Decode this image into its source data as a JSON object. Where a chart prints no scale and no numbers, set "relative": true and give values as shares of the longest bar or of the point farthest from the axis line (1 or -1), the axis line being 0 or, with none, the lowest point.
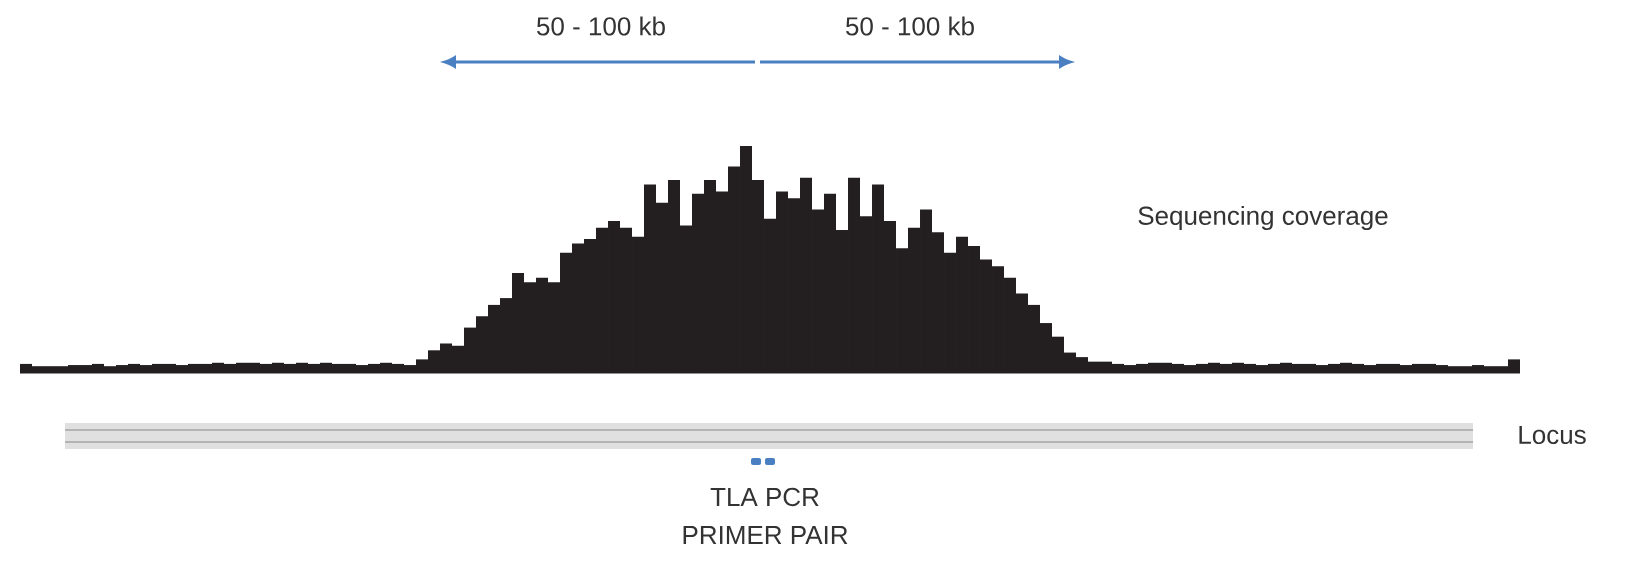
{
  "chart_data": {
    "type": "bar",
    "relative": true,
    "color": "#231f20",
    "categories": [
      null,
      null,
      null,
      null,
      null,
      null,
      null,
      null,
      null,
      null,
      null,
      null,
      null,
      null,
      null,
      null,
      null,
      null,
      null,
      null,
      null,
      null,
      null,
      null,
      null,
      null,
      null,
      null,
      null,
      null,
      null,
      null,
      null,
      null,
      null,
      null,
      null,
      null,
      null,
      null,
      null,
      null,
      null,
      null,
      null,
      null,
      null,
      null,
      null,
      null,
      null,
      null,
      null,
      null,
      null,
      null,
      null,
      null,
      null,
      null,
      null,
      null,
      null,
      null,
      null,
      null,
      null,
      null,
      null,
      null,
      null,
      null,
      null,
      null,
      null,
      null,
      null,
      null,
      null,
      null,
      null,
      null,
      null,
      null,
      null,
      null,
      null,
      null,
      null,
      null,
      null,
      null,
      null,
      null,
      null,
      null,
      null,
      null,
      null,
      null,
      null,
      null,
      null,
      null,
      null,
      null,
      null,
      null,
      null,
      null,
      null,
      null,
      null,
      null,
      null,
      null,
      null,
      null,
      null,
      null,
      null,
      null,
      null,
      null,
      null
    ],
    "values": [
      0.04,
      0.03,
      0.03,
      0.03,
      0.035,
      0.035,
      0.04,
      0.03,
      0.035,
      0.04,
      0.035,
      0.04,
      0.04,
      0.035,
      0.04,
      0.04,
      0.045,
      0.04,
      0.045,
      0.045,
      0.04,
      0.045,
      0.04,
      0.045,
      0.04,
      0.045,
      0.04,
      0.04,
      0.035,
      0.04,
      0.045,
      0.04,
      0.035,
      0.06,
      0.1,
      0.13,
      0.12,
      0.2,
      0.25,
      0.3,
      0.33,
      0.44,
      0.4,
      0.42,
      0.4,
      0.53,
      0.57,
      0.59,
      0.64,
      0.67,
      0.64,
      0.6,
      0.83,
      0.75,
      0.85,
      0.65,
      0.79,
      0.85,
      0.8,
      0.91,
      1.0,
      0.85,
      0.68,
      0.8,
      0.77,
      0.86,
      0.72,
      0.79,
      0.63,
      0.86,
      0.69,
      0.83,
      0.67,
      0.55,
      0.64,
      0.72,
      0.62,
      0.53,
      0.6,
      0.56,
      0.5,
      0.47,
      0.42,
      0.35,
      0.3,
      0.22,
      0.16,
      0.09,
      0.07,
      0.05,
      0.05,
      0.04,
      0.035,
      0.04,
      0.045,
      0.045,
      0.04,
      0.035,
      0.04,
      0.045,
      0.04,
      0.045,
      0.04,
      0.035,
      0.04,
      0.045,
      0.04,
      0.04,
      0.035,
      0.04,
      0.045,
      0.04,
      0.035,
      0.04,
      0.04,
      0.035,
      0.04,
      0.04,
      0.035,
      0.03,
      0.03,
      0.035,
      0.03,
      0.03,
      0.06
    ],
    "annotations": [
      "50 - 100 kb",
      "50 - 100 kb",
      "Sequencing coverage",
      "Locus",
      "TLA PCR",
      "PRIMER PAIR"
    ]
  }
}
